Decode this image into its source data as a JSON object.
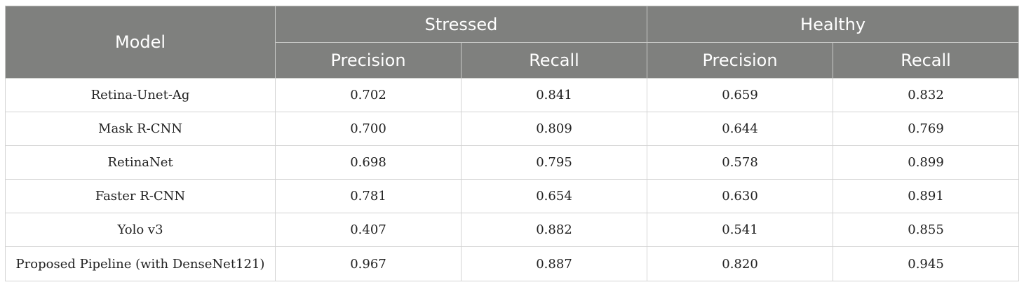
{
  "table": {
    "header": {
      "model_label": "Model",
      "groups": [
        "Stressed",
        "Healthy"
      ],
      "metrics": [
        "Precision",
        "Recall",
        "Precision",
        "Recall"
      ]
    },
    "rows": [
      {
        "model": "Retina-Unet-Ag",
        "values": [
          "0.702",
          "0.841",
          "0.659",
          "0.832"
        ]
      },
      {
        "model": "Mask R-CNN",
        "values": [
          "0.700",
          "0.809",
          "0.644",
          "0.769"
        ]
      },
      {
        "model": "RetinaNet",
        "values": [
          "0.698",
          "0.795",
          "0.578",
          "0.899"
        ]
      },
      {
        "model": "Faster R-CNN",
        "values": [
          "0.781",
          "0.654",
          "0.630",
          "0.891"
        ]
      },
      {
        "model": "Yolo v3",
        "values": [
          "0.407",
          "0.882",
          "0.541",
          "0.855"
        ]
      },
      {
        "model": "Proposed Pipeline (with DenseNet121)",
        "values": [
          "0.967",
          "0.887",
          "0.820",
          "0.945"
        ]
      }
    ]
  }
}
